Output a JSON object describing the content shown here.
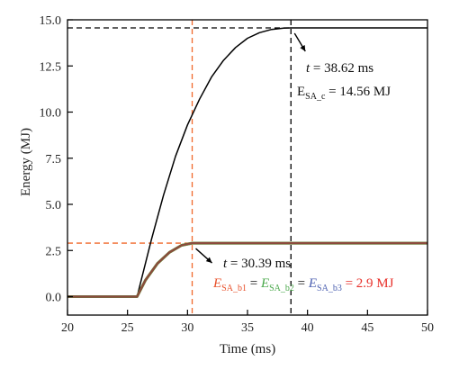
{
  "chart_data": {
    "type": "line",
    "xlabel": "Time (ms)",
    "ylabel": "Energy (MJ)",
    "xlim": [
      20,
      50
    ],
    "ylim": [
      -1,
      15
    ],
    "x_ticks": [
      20,
      25,
      30,
      35,
      40,
      45,
      50
    ],
    "y_ticks": [
      0.0,
      2.5,
      5.0,
      7.5,
      10.0,
      12.5,
      15.0
    ],
    "x_tick_labels": [
      "20",
      "25",
      "30",
      "35",
      "40",
      "45",
      "50"
    ],
    "y_tick_labels": [
      "0.0",
      "2.5",
      "5.0",
      "7.5",
      "10.0",
      "12.5",
      "15.0"
    ],
    "grid": false,
    "legend": "none",
    "series": [
      {
        "color": "#000000",
        "x": [
          20,
          25.8,
          27,
          28,
          29,
          30,
          31,
          32,
          33,
          34,
          35,
          36,
          37,
          38,
          38.62,
          40,
          45,
          50
        ],
        "y": [
          0,
          0,
          3.1,
          5.5,
          7.6,
          9.3,
          10.7,
          11.9,
          12.8,
          13.5,
          14.0,
          14.3,
          14.48,
          14.55,
          14.56,
          14.56,
          14.56,
          14.56
        ]
      },
      {
        "color": "#f0682a",
        "x": [
          20,
          25.8,
          26.5,
          27.5,
          28.5,
          29.5,
          30.39,
          35,
          40,
          45,
          50
        ],
        "y": [
          0,
          0,
          0.9,
          1.8,
          2.4,
          2.78,
          2.9,
          2.9,
          2.9,
          2.9,
          2.9
        ]
      },
      {
        "color": "#49a84a",
        "x": [
          20,
          25.8,
          26.5,
          27.5,
          28.5,
          29.5,
          30.39,
          35,
          40,
          45,
          50
        ],
        "y": [
          0,
          0,
          0.9,
          1.8,
          2.4,
          2.78,
          2.9,
          2.9,
          2.9,
          2.9,
          2.9
        ]
      },
      {
        "color": "#8c4a3c",
        "x": [
          20,
          25.8,
          26.5,
          27.5,
          28.5,
          29.5,
          30.39,
          35,
          40,
          45,
          50
        ],
        "y": [
          0,
          0,
          0.9,
          1.8,
          2.4,
          2.78,
          2.9,
          2.9,
          2.9,
          2.9,
          2.9
        ]
      }
    ],
    "reference_lines": [
      {
        "kind": "vertical",
        "x": 38.62,
        "color": "#000000",
        "style": "dashed"
      },
      {
        "kind": "horizontal",
        "y": 14.56,
        "color": "#000000",
        "style": "dashed"
      },
      {
        "kind": "vertical",
        "x": 30.39,
        "color": "#f0682a",
        "style": "dashed"
      },
      {
        "kind": "horizontal",
        "y": 2.9,
        "color": "#f0682a",
        "style": "dashed"
      }
    ],
    "annotations": {
      "upper": {
        "t_var": "t",
        "t_text": " = 38.62 ms",
        "e_var": "E",
        "e_sub": "SA_c",
        "e_text": " = 14.56 MJ"
      },
      "lower": {
        "t_var": "t",
        "t_text": " = 30.39 ms",
        "e1_var": "E",
        "e1_sub": "SA_b1",
        "e1_color": "#e8502a",
        "eq1": " = ",
        "e2_var": "E",
        "e2_sub": "SA_b2",
        "e2_color": "#49a84a",
        "eq2": " = ",
        "e3_var": "E",
        "e3_sub": "SA_b3",
        "e3_color": "#4b5fb0",
        "value_text": " = 2.9 MJ",
        "value_color": "#e8302a"
      }
    }
  }
}
